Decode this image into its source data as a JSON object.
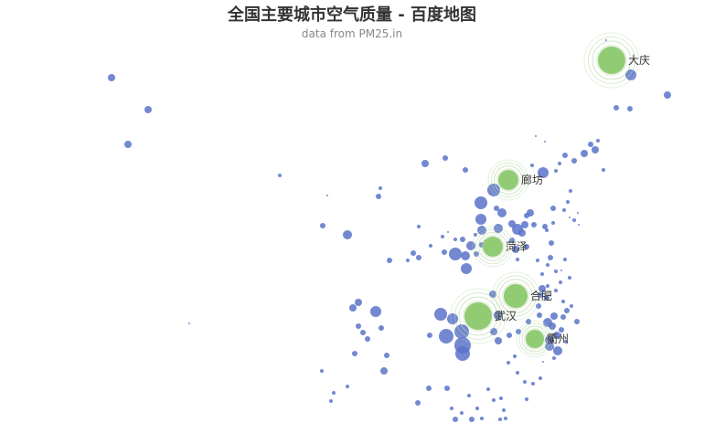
{
  "header": {
    "title": "全国主要城市空气质量 - 百度地图",
    "subtitle": "data from PM25.in"
  },
  "colors": {
    "point": "#5a73c9",
    "highlight": "#91cc75",
    "ring": "#b9d8a6",
    "label": "#333333"
  },
  "highlighted_cities": [
    "大庆",
    "廊坊",
    "菏泽",
    "合肥",
    "武汉",
    "衢州"
  ]
}
